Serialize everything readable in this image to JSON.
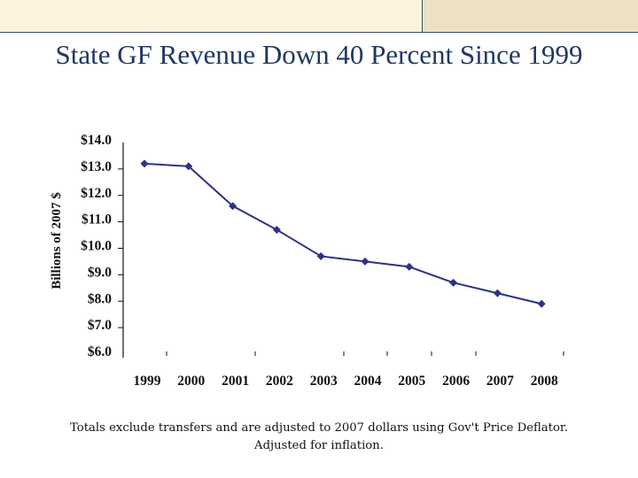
{
  "slide": {
    "title": "State GF Revenue Down 40 Percent Since 1999",
    "footnote_line1": "Totals exclude transfers and are adjusted to 2007 dollars using Gov't Price Deflator.",
    "footnote_line2": "Adjusted for inflation.",
    "colors": {
      "title": "#1f3864",
      "series": "#2e3285",
      "band_left": "#fbf3de",
      "band_right": "#ece2c3"
    }
  },
  "chart_data": {
    "type": "line",
    "title": "State GF Revenue Down 40 Percent Since 1999",
    "xlabel": "",
    "ylabel": "Billions of 2007 $",
    "categories": [
      "1999",
      "2000",
      "2001",
      "2002",
      "2003",
      "2004",
      "2005",
      "2006",
      "2007",
      "2008"
    ],
    "series": [
      {
        "name": "State GF Revenue",
        "marker": "diamond",
        "values": [
          13.1,
          13.0,
          11.5,
          10.6,
          9.6,
          9.4,
          9.2,
          8.6,
          8.2,
          7.8
        ]
      }
    ],
    "yticks": [
      14.0,
      13.0,
      12.0,
      11.0,
      10.0,
      9.0,
      8.0,
      7.0,
      6.0
    ],
    "ytick_labels": [
      "$14.0",
      "$13.0",
      "$12.0",
      "$11.0",
      "$10.0",
      "$9.0",
      "$8.0",
      "$7.0",
      "$6.0"
    ],
    "ylim": [
      6.0,
      14.0
    ],
    "grid": false,
    "legend": "none"
  }
}
